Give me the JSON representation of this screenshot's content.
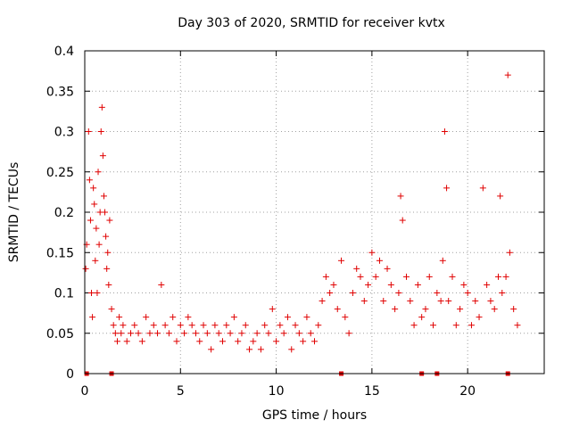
{
  "chart_data": {
    "type": "scatter",
    "title": "Day 303 of 2020, SRMTID for receiver kvtx",
    "xlabel": "GPS time / hours",
    "ylabel": "SRMTID / TECUs",
    "xlim": [
      0,
      24
    ],
    "ylim": [
      0,
      0.4
    ],
    "xticks": [
      0,
      5,
      10,
      15,
      20
    ],
    "xtick_labels": [
      "0",
      "5",
      "10",
      "15",
      "20"
    ],
    "yticks": [
      0,
      0.05,
      0.1,
      0.15,
      0.2,
      0.25,
      0.3,
      0.35,
      0.4
    ],
    "ytick_labels": [
      "0",
      "0.05",
      "0.1",
      "0.15",
      "0.2",
      "0.25",
      "0.3",
      "0.35",
      "0.4"
    ],
    "grid": true,
    "marker": "+",
    "color": "#e00000",
    "series": [
      {
        "name": "SRMTID",
        "x": [
          0.05,
          0.1,
          0.2,
          0.25,
          0.3,
          0.35,
          0.4,
          0.45,
          0.5,
          0.55,
          0.6,
          0.65,
          0.7,
          0.75,
          0.8,
          0.85,
          0.9,
          0.95,
          1.0,
          1.05,
          1.1,
          1.15,
          1.2,
          1.25,
          1.3,
          1.4,
          1.5,
          1.6,
          1.7,
          1.8,
          1.9,
          2.0,
          2.2,
          2.4,
          2.6,
          2.8,
          3.0,
          3.2,
          3.4,
          3.6,
          3.8,
          4.0,
          4.2,
          4.4,
          4.6,
          4.8,
          5.0,
          5.2,
          5.4,
          5.6,
          5.8,
          6.0,
          6.2,
          6.4,
          6.6,
          6.8,
          7.0,
          7.2,
          7.4,
          7.6,
          7.8,
          8.0,
          8.2,
          8.4,
          8.6,
          8.8,
          9.0,
          9.2,
          9.4,
          9.6,
          9.8,
          10.0,
          10.2,
          10.4,
          10.6,
          10.8,
          11.0,
          11.2,
          11.4,
          11.6,
          11.8,
          12.0,
          12.2,
          12.4,
          12.6,
          12.8,
          13.0,
          13.2,
          13.4,
          13.6,
          13.8,
          14.0,
          14.2,
          14.4,
          14.6,
          14.8,
          15.0,
          15.2,
          15.4,
          15.6,
          15.8,
          16.0,
          16.2,
          16.4,
          16.5,
          16.6,
          16.8,
          17.0,
          17.2,
          17.4,
          17.6,
          17.8,
          18.0,
          18.2,
          18.4,
          18.6,
          18.7,
          18.8,
          18.9,
          19.0,
          19.2,
          19.4,
          19.6,
          19.8,
          20.0,
          20.2,
          20.4,
          20.6,
          20.8,
          21.0,
          21.2,
          21.4,
          21.6,
          21.7,
          21.8,
          22.0,
          22.1,
          22.2,
          22.4,
          22.6
        ],
        "y": [
          0.13,
          0.16,
          0.3,
          0.24,
          0.19,
          0.1,
          0.07,
          0.23,
          0.21,
          0.14,
          0.18,
          0.1,
          0.25,
          0.16,
          0.2,
          0.3,
          0.33,
          0.27,
          0.22,
          0.2,
          0.17,
          0.13,
          0.15,
          0.11,
          0.19,
          0.08,
          0.06,
          0.05,
          0.04,
          0.07,
          0.05,
          0.06,
          0.04,
          0.05,
          0.06,
          0.05,
          0.04,
          0.07,
          0.05,
          0.06,
          0.05,
          0.11,
          0.06,
          0.05,
          0.07,
          0.04,
          0.06,
          0.05,
          0.07,
          0.06,
          0.05,
          0.04,
          0.06,
          0.05,
          0.03,
          0.06,
          0.05,
          0.04,
          0.06,
          0.05,
          0.07,
          0.04,
          0.05,
          0.06,
          0.03,
          0.04,
          0.05,
          0.03,
          0.06,
          0.05,
          0.08,
          0.04,
          0.06,
          0.05,
          0.07,
          0.03,
          0.06,
          0.05,
          0.04,
          0.07,
          0.05,
          0.04,
          0.06,
          0.09,
          0.12,
          0.1,
          0.11,
          0.08,
          0.14,
          0.07,
          0.05,
          0.1,
          0.13,
          0.12,
          0.09,
          0.11,
          0.15,
          0.12,
          0.14,
          0.09,
          0.13,
          0.11,
          0.08,
          0.1,
          0.22,
          0.19,
          0.12,
          0.09,
          0.06,
          0.11,
          0.07,
          0.08,
          0.12,
          0.06,
          0.1,
          0.09,
          0.14,
          0.3,
          0.23,
          0.09,
          0.12,
          0.06,
          0.08,
          0.11,
          0.1,
          0.06,
          0.09,
          0.07,
          0.23,
          0.11,
          0.09,
          0.08,
          0.12,
          0.22,
          0.1,
          0.12,
          0.37,
          0.15,
          0.08,
          0.06
        ]
      }
    ],
    "gap_markers_x": [
      0.1,
      1.4,
      13.4,
      17.6,
      18.4,
      22.1
    ]
  }
}
